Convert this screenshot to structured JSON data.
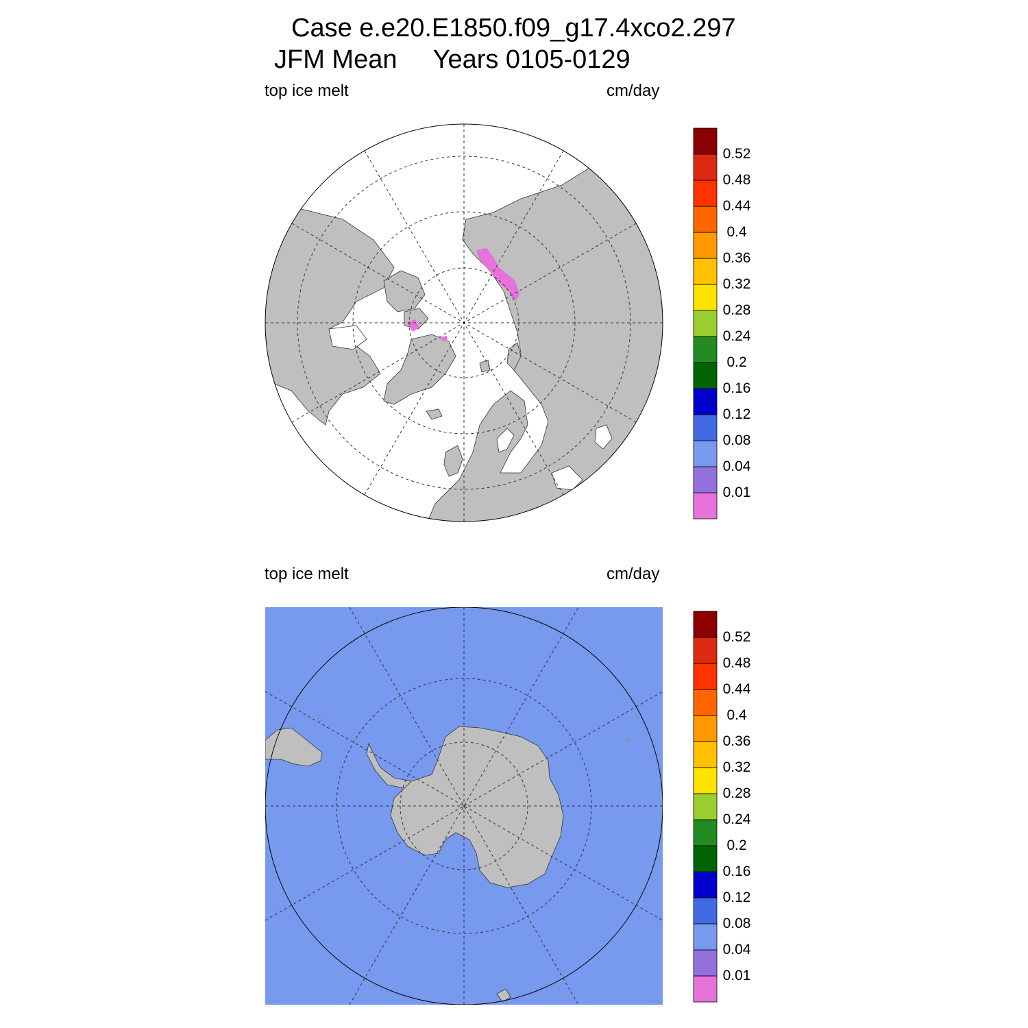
{
  "title": {
    "line1": "Case e.e20.E1850.f09_g17.4xco2.297",
    "line2": "JFM Mean     Years 0105-0129"
  },
  "panels": [
    {
      "id": "north",
      "left_label": "top ice melt",
      "right_label": "cm/day",
      "hemisphere": "Arctic"
    },
    {
      "id": "south",
      "left_label": "top ice melt",
      "right_label": "cm/day",
      "hemisphere": "Antarctic"
    }
  ],
  "colorbar": {
    "labels": [
      "0.01",
      "0.04",
      "0.08",
      "0.12",
      "0.16",
      "0.2",
      "0.24",
      "0.28",
      "0.32",
      "0.36",
      "0.4",
      "0.44",
      "0.48",
      "0.52"
    ],
    "colors": [
      "#e672dc",
      "#9370db",
      "#7799ee",
      "#4169e1",
      "#0000cd",
      "#006400",
      "#228b22",
      "#9acd32",
      "#ffe200",
      "#ffc000",
      "#ff9900",
      "#ff6600",
      "#ff3300",
      "#dd2a10",
      "#8b0000"
    ]
  },
  "colors": {
    "land": "#bfbfbf",
    "ocean_north": "#ffffff",
    "ocean_south": "#7799ee",
    "melt_north": "#e672dc"
  }
}
